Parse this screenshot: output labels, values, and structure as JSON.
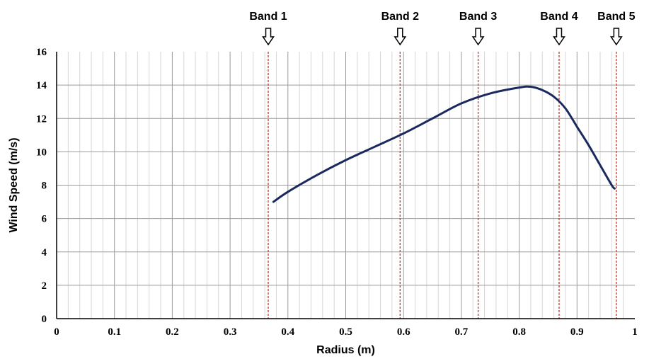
{
  "chart_data": {
    "type": "line",
    "title": "",
    "xlabel": "Radius (m)",
    "ylabel": "Wind Speed (m/s)",
    "xlim": [
      0,
      1
    ],
    "ylim": [
      0,
      16
    ],
    "x_ticks": [
      "0",
      "0.1",
      "0.2",
      "0.3",
      "0.4",
      "0.5",
      "0.6",
      "0.7",
      "0.8",
      "0.9",
      "1"
    ],
    "y_ticks": [
      "0",
      "2",
      "4",
      "6",
      "8",
      "10",
      "12",
      "14",
      "16"
    ],
    "grid": true,
    "series": [
      {
        "color": "#1b2a5e",
        "x": [
          0.375,
          0.4,
          0.45,
          0.5,
          0.55,
          0.6,
          0.65,
          0.7,
          0.75,
          0.8,
          0.82,
          0.84,
          0.86,
          0.88,
          0.9,
          0.92,
          0.94,
          0.96,
          0.965
        ],
        "y": [
          7.0,
          7.6,
          8.6,
          9.5,
          10.3,
          11.1,
          12.0,
          12.9,
          13.5,
          13.85,
          13.9,
          13.7,
          13.3,
          12.6,
          11.5,
          10.4,
          9.2,
          8.0,
          7.8
        ]
      }
    ],
    "bands": [
      {
        "label": "Band 1",
        "x": 0.366
      },
      {
        "label": "Band 2",
        "x": 0.594
      },
      {
        "label": "Band 3",
        "x": 0.729
      },
      {
        "label": "Band 4",
        "x": 0.869
      },
      {
        "label": "Band 5",
        "x": 0.968
      }
    ],
    "band_color": "#c0392b"
  }
}
